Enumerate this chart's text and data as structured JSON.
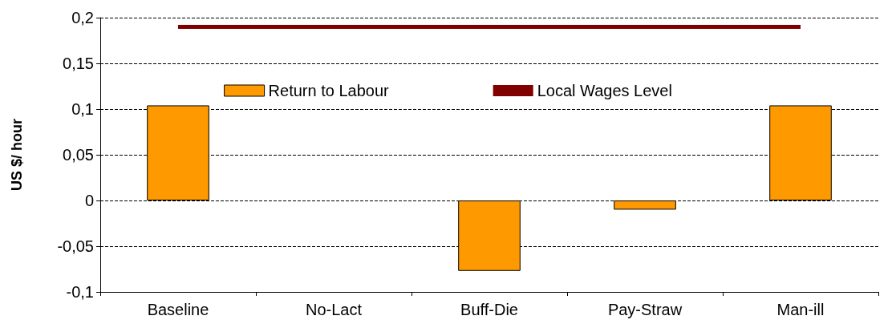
{
  "chart_data": {
    "type": "bar",
    "ylabel": "US $/ hour",
    "categories": [
      "Baseline",
      "No-Lact",
      "Buff-Die",
      "Pay-Straw",
      "Man-ill"
    ],
    "series": [
      {
        "name": "Return to Labour",
        "color": "#ff9900",
        "values": [
          0.104,
          null,
          -0.077,
          -0.01,
          0.104
        ]
      },
      {
        "name": "Local Wages Level",
        "type": "line",
        "color": "#800000",
        "values": [
          0.19,
          0.19,
          0.19,
          0.19,
          0.19
        ]
      }
    ],
    "ylim": [
      -0.1,
      0.2
    ],
    "yticks": [
      {
        "value": -0.1,
        "label": "-0,1"
      },
      {
        "value": -0.05,
        "label": "-0,05"
      },
      {
        "value": 0,
        "label": "0"
      },
      {
        "value": 0.05,
        "label": "0,05"
      },
      {
        "value": 0.1,
        "label": "0,1"
      },
      {
        "value": 0.15,
        "label": "0,15"
      },
      {
        "value": 0.2,
        "label": "0,2"
      }
    ],
    "grid": "y",
    "legend": "top",
    "marker": "none"
  }
}
